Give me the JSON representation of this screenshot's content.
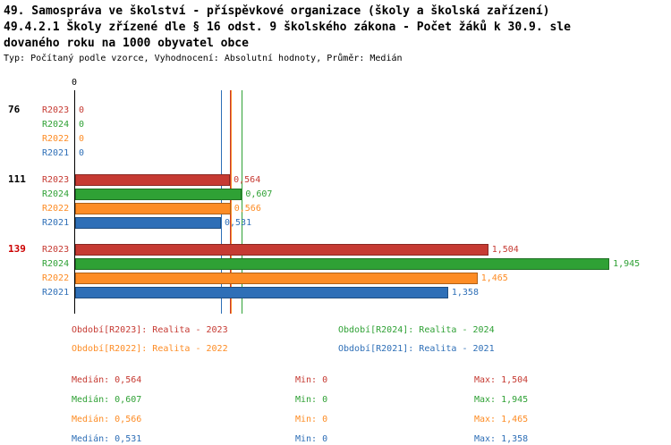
{
  "title": {
    "line1": "49. Samospráva ve školství - příspěvkové organizace (školy a školská zařízení)",
    "line2": "49.4.2.1 Školy zřízené dle § 16 odst. 9 školského zákona - Počet žáků k 30.9. sle",
    "line3": "dovaného roku na 1000 obyvatel obce",
    "meta": "Typ: Počítaný podle vzorce, Vyhodnocení: Absolutní hodnoty, Průměr: Medián"
  },
  "colors": {
    "r2023": "#c63a32",
    "r2024": "#2fa135",
    "r2022": "#fd8c25",
    "r2021": "#2e6fb7",
    "axis": "#000000",
    "group_label": "#000000",
    "group_label_highlight": "#cc0000"
  },
  "chart_data": {
    "type": "bar",
    "orientation": "horizontal",
    "xlim": [
      0,
      2.15
    ],
    "x_tick_labels": [
      "0"
    ],
    "grid": false,
    "legend_position": "bottom",
    "categories": [
      "76",
      "111",
      "139"
    ],
    "highlighted_category": "139",
    "series": [
      {
        "name": "R2023",
        "color_key": "r2023",
        "values": [
          0,
          0.564,
          1.504
        ],
        "value_labels": [
          "0",
          "0,564",
          "1,504"
        ],
        "median": 0.564,
        "min": 0,
        "max": 1.504
      },
      {
        "name": "R2024",
        "color_key": "r2024",
        "values": [
          0,
          0.607,
          1.945
        ],
        "value_labels": [
          "0",
          "0,607",
          "1,945"
        ],
        "median": 0.607,
        "min": 0,
        "max": 1.945
      },
      {
        "name": "R2022",
        "color_key": "r2022",
        "values": [
          0,
          0.566,
          1.465
        ],
        "value_labels": [
          "0",
          "0,566",
          "1,465"
        ],
        "median": 0.566,
        "min": 0,
        "max": 1.465
      },
      {
        "name": "R2021",
        "color_key": "r2021",
        "values": [
          0,
          0.531,
          1.358
        ],
        "value_labels": [
          "0",
          "0,531",
          "1,358"
        ],
        "median": 0.531,
        "min": 0,
        "max": 1.358
      }
    ],
    "median_lines": [
      {
        "value": 0.531,
        "color_key": "r2021"
      },
      {
        "value": 0.564,
        "color_key": "r2023"
      },
      {
        "value": 0.566,
        "color_key": "r2022"
      },
      {
        "value": 0.607,
        "color_key": "r2024"
      }
    ]
  },
  "legend": [
    {
      "text": "Období[R2023]: Realita - 2023",
      "color_key": "r2023"
    },
    {
      "text": "Období[R2024]: Realita - 2024",
      "color_key": "r2024"
    },
    {
      "text": "Období[R2022]: Realita - 2022",
      "color_key": "r2022"
    },
    {
      "text": "Období[R2021]: Realita - 2021",
      "color_key": "r2021"
    }
  ],
  "stats": [
    {
      "median_text": "Medián: 0,564",
      "min_text": "Min: 0",
      "max_text": "Max: 1,504",
      "color_key": "r2023"
    },
    {
      "median_text": "Medián: 0,607",
      "min_text": "Min: 0",
      "max_text": "Max: 1,945",
      "color_key": "r2024"
    },
    {
      "median_text": "Medián: 0,566",
      "min_text": "Min: 0",
      "max_text": "Max: 1,465",
      "color_key": "r2022"
    },
    {
      "median_text": "Medián: 0,531",
      "min_text": "Min: 0",
      "max_text": "Max: 1,358",
      "color_key": "r2021"
    }
  ]
}
